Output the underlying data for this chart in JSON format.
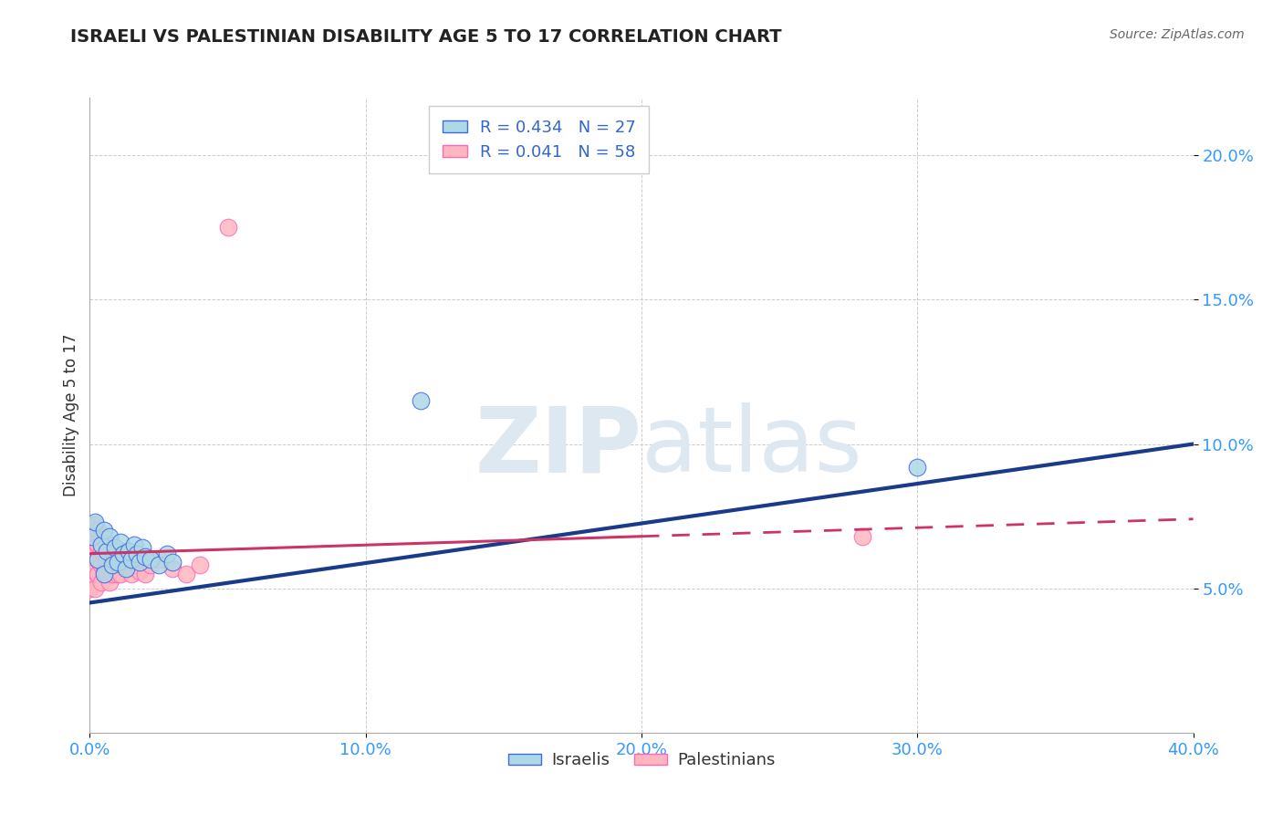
{
  "title": "ISRAELI VS PALESTINIAN DISABILITY AGE 5 TO 17 CORRELATION CHART",
  "source": "Source: ZipAtlas.com",
  "ylabel_label": "Disability Age 5 to 17",
  "xlim": [
    0.0,
    0.4
  ],
  "ylim": [
    0.0,
    0.22
  ],
  "xticks": [
    0.0,
    0.1,
    0.2,
    0.3,
    0.4
  ],
  "yticks": [
    0.05,
    0.1,
    0.15,
    0.2
  ],
  "xtick_labels": [
    "0.0%",
    "10.0%",
    "20.0%",
    "30.0%",
    "40.0%"
  ],
  "ytick_labels": [
    "5.0%",
    "10.0%",
    "15.0%",
    "20.0%"
  ],
  "israeli_color": "#ADD8E6",
  "israeli_edge_color": "#4169E1",
  "palestinian_color": "#FFB6C1",
  "palestinian_edge_color": "#FF69B4",
  "trend_israeli_color": "#1a3a8a",
  "trend_palestinian_color": "#cc3366",
  "R_israeli": 0.434,
  "N_israeli": 27,
  "R_palestinian": 0.041,
  "N_palestinian": 58,
  "israeli_x": [
    0.001,
    0.002,
    0.003,
    0.004,
    0.005,
    0.005,
    0.006,
    0.007,
    0.008,
    0.009,
    0.01,
    0.011,
    0.012,
    0.013,
    0.014,
    0.015,
    0.016,
    0.017,
    0.018,
    0.019,
    0.02,
    0.022,
    0.025,
    0.028,
    0.03,
    0.12,
    0.3
  ],
  "israeli_y": [
    0.068,
    0.073,
    0.06,
    0.065,
    0.07,
    0.055,
    0.063,
    0.068,
    0.058,
    0.064,
    0.059,
    0.066,
    0.062,
    0.057,
    0.063,
    0.06,
    0.065,
    0.062,
    0.059,
    0.064,
    0.061,
    0.06,
    0.058,
    0.062,
    0.059,
    0.115,
    0.092
  ],
  "palestinian_x": [
    0.0,
    0.0,
    0.0,
    0.0,
    0.0,
    0.0,
    0.001,
    0.001,
    0.001,
    0.001,
    0.001,
    0.002,
    0.002,
    0.002,
    0.002,
    0.002,
    0.003,
    0.003,
    0.003,
    0.003,
    0.004,
    0.004,
    0.004,
    0.004,
    0.005,
    0.005,
    0.005,
    0.006,
    0.006,
    0.006,
    0.007,
    0.007,
    0.007,
    0.008,
    0.008,
    0.009,
    0.009,
    0.01,
    0.01,
    0.011,
    0.011,
    0.012,
    0.012,
    0.013,
    0.014,
    0.015,
    0.016,
    0.017,
    0.018,
    0.019,
    0.02,
    0.022,
    0.025,
    0.03,
    0.035,
    0.04,
    0.05,
    0.28
  ],
  "palestinian_y": [
    0.06,
    0.064,
    0.068,
    0.056,
    0.072,
    0.05,
    0.058,
    0.063,
    0.067,
    0.055,
    0.07,
    0.062,
    0.066,
    0.056,
    0.072,
    0.05,
    0.06,
    0.065,
    0.055,
    0.07,
    0.058,
    0.063,
    0.052,
    0.068,
    0.056,
    0.062,
    0.067,
    0.06,
    0.055,
    0.065,
    0.058,
    0.063,
    0.052,
    0.06,
    0.055,
    0.057,
    0.063,
    0.055,
    0.062,
    0.06,
    0.055,
    0.058,
    0.063,
    0.06,
    0.057,
    0.055,
    0.06,
    0.058,
    0.056,
    0.06,
    0.055,
    0.058,
    0.06,
    0.057,
    0.055,
    0.058,
    0.175,
    0.068
  ],
  "isr_trend_x0": 0.0,
  "isr_trend_y0": 0.045,
  "isr_trend_x1": 0.4,
  "isr_trend_y1": 0.1,
  "pal_trend_x0": 0.0,
  "pal_trend_y0": 0.062,
  "pal_trend_solid_x1": 0.2,
  "pal_trend_solid_y1": 0.068,
  "pal_trend_dashed_x1": 0.4,
  "pal_trend_dashed_y1": 0.074
}
